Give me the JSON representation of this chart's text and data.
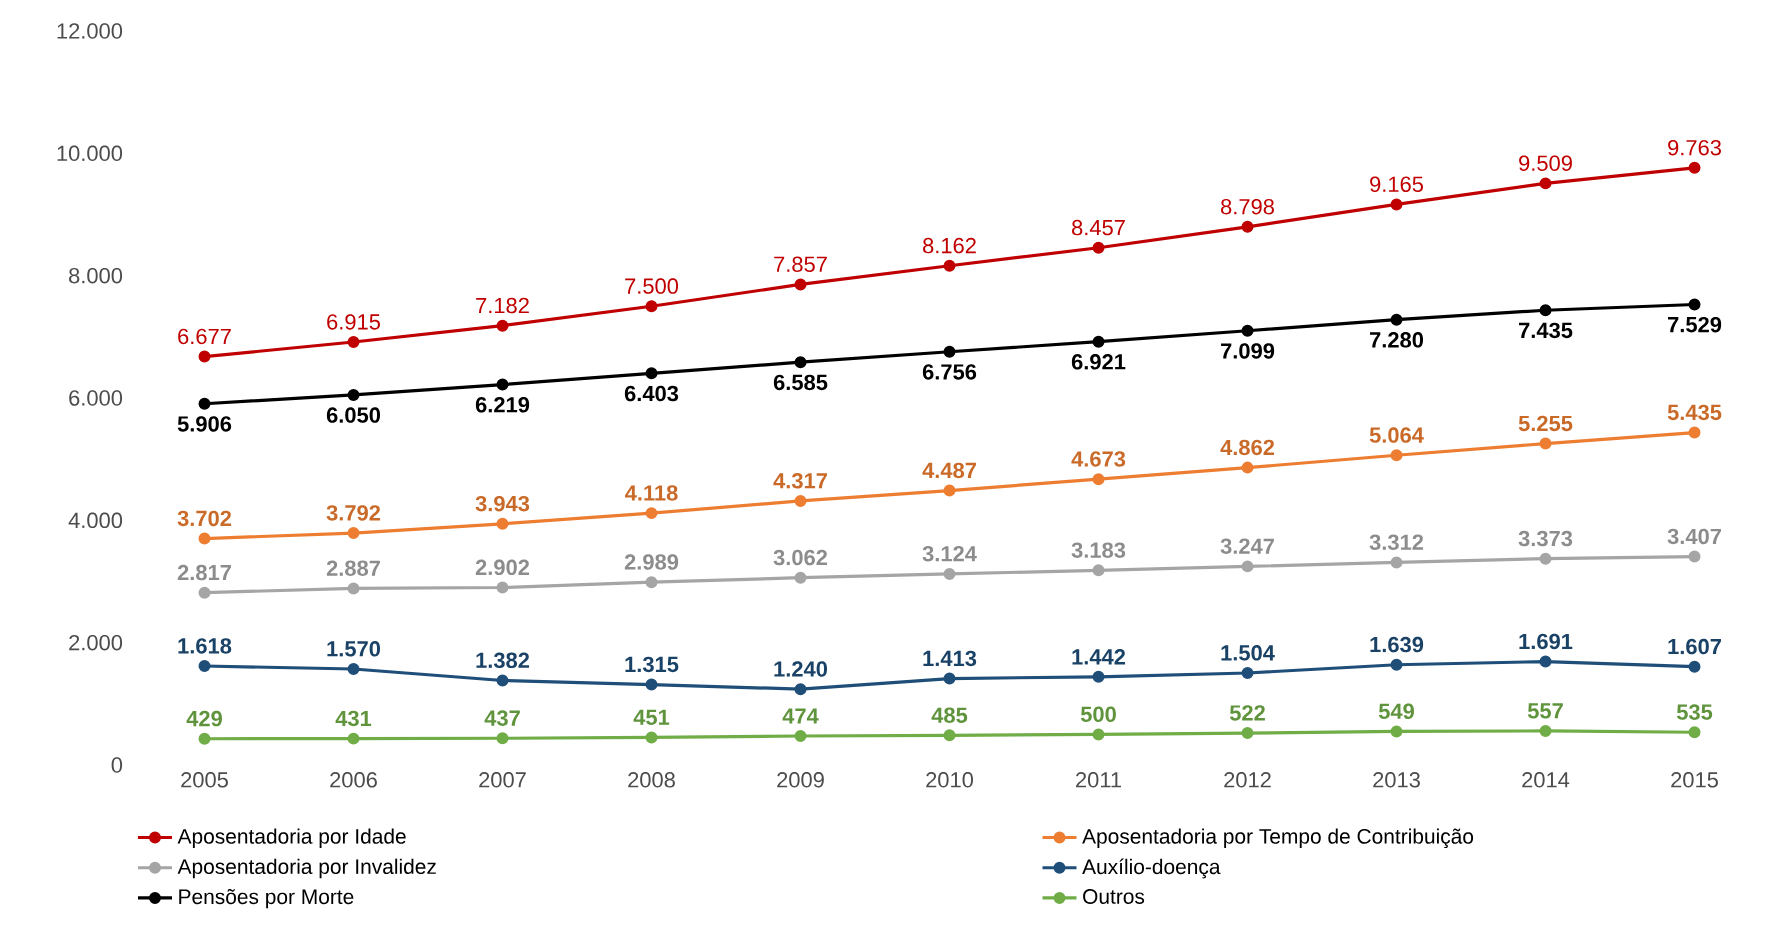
{
  "chart_data": {
    "type": "line",
    "categories": [
      "2005",
      "2006",
      "2007",
      "2008",
      "2009",
      "2010",
      "2011",
      "2012",
      "2013",
      "2014",
      "2015"
    ],
    "series": [
      {
        "name": "Aposentadoria por Idade",
        "color": "#c00000",
        "values": [
          6677,
          6915,
          7182,
          7500,
          7857,
          8162,
          8457,
          8798,
          9165,
          9509,
          9763
        ],
        "value_labels": [
          "6.677",
          "6.915",
          "7.182",
          "7.500",
          "7.857",
          "8.162",
          "8.457",
          "8.798",
          "9.165",
          "9.509",
          "9.763"
        ]
      },
      {
        "name": "Aposentadoria por Tempo de Contribuição",
        "color": "#ed7d31",
        "values": [
          3702,
          3792,
          3943,
          4118,
          4317,
          4487,
          4673,
          4862,
          5064,
          5255,
          5435
        ],
        "value_labels": [
          "3.702",
          "3.792",
          "3.943",
          "4.118",
          "4.317",
          "4.487",
          "4.673",
          "4.862",
          "5.064",
          "5.255",
          "5.435"
        ]
      },
      {
        "name": "Aposentadoria por Invalidez",
        "color": "#a5a5a5",
        "values": [
          2817,
          2887,
          2902,
          2989,
          3062,
          3124,
          3183,
          3247,
          3312,
          3373,
          3407
        ],
        "value_labels": [
          "2.817",
          "2.887",
          "2.902",
          "2.989",
          "3.062",
          "3.124",
          "3.183",
          "3.247",
          "3.312",
          "3.373",
          "3.407"
        ]
      },
      {
        "name": "Auxílio-doença",
        "color": "#1f4e79",
        "values": [
          1618,
          1570,
          1382,
          1315,
          1240,
          1413,
          1442,
          1504,
          1639,
          1691,
          1607
        ],
        "value_labels": [
          "1.618",
          "1.570",
          "1.382",
          "1.315",
          "1.240",
          "1.413",
          "1.442",
          "1.504",
          "1.639",
          "1.691",
          "1.607"
        ]
      },
      {
        "name": "Pensões por Morte",
        "color": "#000000",
        "values": [
          5906,
          6050,
          6219,
          6403,
          6585,
          6756,
          6921,
          7099,
          7280,
          7435,
          7529
        ],
        "value_labels": [
          "5.906",
          "6.050",
          "6.219",
          "6.403",
          "6.585",
          "6.756",
          "6.921",
          "7.099",
          "7.280",
          "7.435",
          "7.529"
        ]
      },
      {
        "name": "Outros",
        "color": "#70ad47",
        "values": [
          429,
          431,
          437,
          451,
          474,
          485,
          500,
          522,
          549,
          557,
          535
        ],
        "value_labels": [
          "429",
          "431",
          "437",
          "451",
          "474",
          "485",
          "500",
          "522",
          "549",
          "557",
          "535"
        ]
      }
    ],
    "ylim": [
      0,
      12000
    ],
    "yticks": [
      0,
      {
        "value": 2000,
        "label": "2.000"
      },
      {
        "value": 4000,
        "label": "4.000"
      },
      {
        "value": 6000,
        "label": "6.000"
      },
      {
        "value": 8000,
        "label": "8.000"
      },
      {
        "value": 10000,
        "label": "10.000"
      },
      {
        "value": 12000,
        "label": "12.000"
      }
    ],
    "grid": false,
    "legend": "bottom",
    "marker": "circle",
    "line_style": "solid"
  }
}
